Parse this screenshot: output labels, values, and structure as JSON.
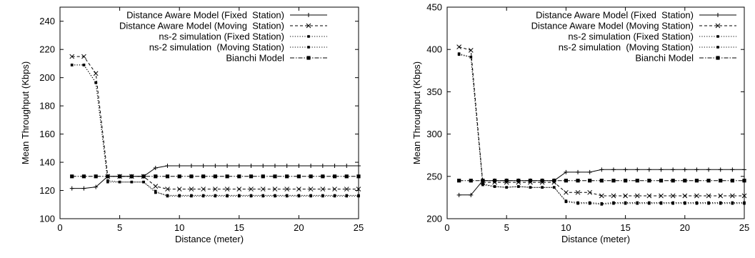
{
  "chart_data": [
    {
      "type": "line",
      "title": "",
      "xlabel": "Distance (meter)",
      "ylabel": "Mean Throughput (Kbps)",
      "xlim": [
        0,
        25
      ],
      "ylim": [
        100,
        250
      ],
      "x_ticks": [
        0,
        5,
        10,
        15,
        20,
        25
      ],
      "y_ticks": [
        100,
        120,
        140,
        160,
        180,
        200,
        220,
        240
      ],
      "grid": false,
      "legend_position": "top-right",
      "x": [
        1,
        2,
        3,
        4,
        5,
        6,
        7,
        8,
        9,
        10,
        11,
        12,
        13,
        14,
        15,
        16,
        17,
        18,
        19,
        20,
        21,
        22,
        23,
        24,
        25
      ],
      "series": [
        {
          "name": "Distance Aware Model (Fixed  Station)",
          "style": "solid",
          "marker": "plus",
          "values": [
            121.5,
            121.5,
            122.5,
            130,
            130,
            130,
            130,
            136,
            137.5,
            137.5,
            137.5,
            137.5,
            137.5,
            137.5,
            137.5,
            137.5,
            137.5,
            137.5,
            137.5,
            137.5,
            137.5,
            137.5,
            137.5,
            137.5,
            137.5
          ]
        },
        {
          "name": "Distance Aware Model (Moving  Station)",
          "style": "dashed",
          "marker": "cross",
          "values": [
            215,
            215,
            203,
            130,
            130,
            130,
            130,
            123,
            121,
            121,
            121,
            121,
            121,
            121,
            121,
            121,
            121,
            121,
            121,
            121,
            121,
            121,
            121,
            121,
            121
          ]
        },
        {
          "name": "ns-2 simulation (Fixed Station)",
          "style": "dotted",
          "marker": "small-square",
          "values": [
            209,
            209,
            196.5,
            127,
            126,
            126,
            126,
            118.5,
            116.5,
            116.5,
            116.5,
            116.5,
            116.5,
            116.5,
            116.5,
            116.5,
            116.5,
            116.5,
            116.5,
            116.5,
            116.5,
            116.5,
            116.5,
            116.5,
            116.5
          ]
        },
        {
          "name": "ns-2 simulation  (Moving Station)",
          "style": "dotted",
          "marker": "small-square",
          "values": [
            209,
            209,
            196.5,
            126,
            126,
            126,
            126,
            119.5,
            116,
            116,
            116,
            116,
            116,
            116,
            116,
            116,
            116,
            116,
            116,
            116,
            116,
            116,
            116,
            116,
            116
          ]
        },
        {
          "name": "Bianchi Model",
          "style": "dash-dot",
          "marker": "filled-square",
          "values": [
            130,
            130,
            130,
            130,
            130,
            130,
            130,
            130,
            130,
            130,
            130,
            130,
            130,
            130,
            130,
            130,
            130,
            130,
            130,
            130,
            130,
            130,
            130,
            130,
            130
          ]
        }
      ]
    },
    {
      "type": "line",
      "title": "",
      "xlabel": "Distance (meter)",
      "ylabel": "Mean Throughput (Kbps)",
      "xlim": [
        0,
        25
      ],
      "ylim": [
        200,
        450
      ],
      "x_ticks": [
        0,
        5,
        10,
        15,
        20,
        25
      ],
      "y_ticks": [
        200,
        250,
        300,
        350,
        400,
        450
      ],
      "grid": false,
      "legend_position": "top-right",
      "x": [
        1,
        2,
        3,
        4,
        5,
        6,
        7,
        8,
        9,
        10,
        11,
        12,
        13,
        14,
        15,
        16,
        17,
        18,
        19,
        20,
        21,
        22,
        23,
        24,
        25
      ],
      "series": [
        {
          "name": "Distance Aware Model (Fixed  Station)",
          "style": "solid",
          "marker": "plus",
          "values": [
            228,
            228,
            245,
            245,
            245,
            245,
            245,
            245,
            245,
            255,
            255,
            255,
            258,
            258,
            258,
            258,
            258,
            258,
            258,
            258,
            258,
            258,
            258,
            258,
            258
          ]
        },
        {
          "name": "Distance Aware Model (Moving Station)",
          "style": "dashed",
          "marker": "cross",
          "values": [
            403,
            399,
            243,
            243,
            243,
            243,
            243,
            243,
            243,
            231,
            231,
            231,
            227,
            227,
            227,
            227,
            227,
            227,
            227,
            227,
            227,
            227,
            227,
            227,
            227
          ]
        },
        {
          "name": "ns-2 simulation (Fixed Station)",
          "style": "dotted",
          "marker": "small-square",
          "values": [
            395,
            391,
            240,
            238,
            237,
            238,
            237,
            237,
            237,
            221,
            219,
            219,
            218,
            219,
            219,
            219,
            219,
            219,
            219,
            219,
            219,
            219,
            219,
            219,
            219
          ]
        },
        {
          "name": "ns-2 simulation  (Moving Station)",
          "style": "dotted",
          "marker": "small-square",
          "values": [
            394,
            391,
            241,
            238,
            237,
            238,
            237,
            237,
            237,
            220,
            218,
            218,
            217,
            218,
            218,
            218,
            218,
            218,
            218,
            218,
            218,
            218,
            218,
            218,
            218
          ]
        },
        {
          "name": "Bianchi Model",
          "style": "dash-dot",
          "marker": "filled-square",
          "values": [
            245,
            245,
            245,
            245,
            245,
            245,
            245,
            245,
            245,
            245,
            245,
            245,
            245,
            245,
            245,
            245,
            245,
            245,
            245,
            245,
            245,
            245,
            245,
            245,
            245
          ]
        }
      ]
    }
  ]
}
